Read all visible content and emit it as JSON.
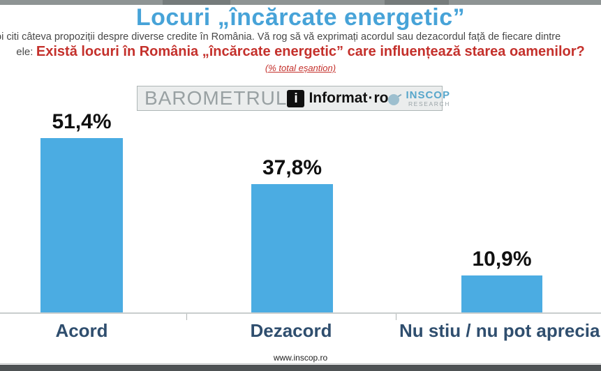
{
  "page": {
    "title": "Locuri „încărcate energetic”",
    "intro_text": "oi citi câteva propoziții despre diverse credite în România. Vă rog să vă exprimați acordul sau dezacordul față de fiecare dintre",
    "question_prefix": "ele:",
    "question": "Există locuri în România „încărcate energetic” care influențează starea oamenilor?",
    "sample_note": "(% total eșantion)",
    "footer_url": "www.inscop.ro"
  },
  "logos": {
    "barometrul": "BAROMETRUL",
    "informat_icon_letter": "i",
    "informat_name": "Informat",
    "informat_dot": "·",
    "informat_tld": "ro",
    "inscop_name": "INSCOP",
    "inscop_sub": "RESEARCH"
  },
  "chart_data": {
    "type": "bar",
    "title": "Locuri „încărcate energetic”",
    "categories": [
      "Acord",
      "Dezacord",
      "Nu stiu / nu pot aprecia"
    ],
    "values": [
      51.4,
      37.8,
      10.9
    ],
    "value_labels": [
      "51,4%",
      "37,8%",
      "10,9%"
    ],
    "unit": "% total eșantion",
    "xlabel": "",
    "ylabel": "",
    "ylim": [
      0,
      55
    ],
    "grid": false,
    "legend": "none",
    "bar_color": "#4BACE2"
  },
  "colors": {
    "title_blue": "#47A3D8",
    "bar_blue": "#4BACE2",
    "accent_red": "#C4302B",
    "category_navy": "#2F4E6E",
    "body_gray": "#474747"
  }
}
